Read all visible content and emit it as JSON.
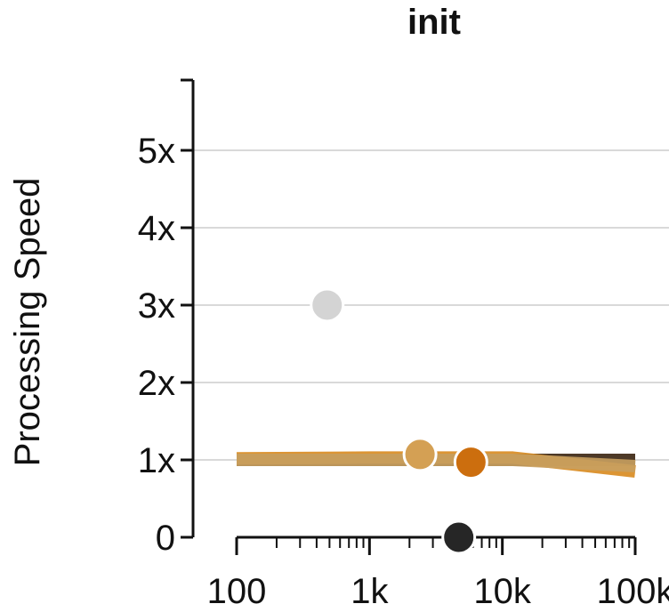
{
  "chart_data": {
    "type": "line",
    "title": "init",
    "xlabel": "",
    "ylabel": "Processing Speed",
    "x_scale": "log",
    "xlim": [
      100,
      100000
    ],
    "ylim": [
      0,
      5.8
    ],
    "grid": true,
    "x_ticks": [
      {
        "value": 100,
        "label": "100"
      },
      {
        "value": 1000,
        "label": "1k"
      },
      {
        "value": 10000,
        "label": "10k"
      },
      {
        "value": 100000,
        "label": "100k"
      }
    ],
    "y_ticks": [
      {
        "value": 0,
        "label": "0"
      },
      {
        "value": 1,
        "label": "1x"
      },
      {
        "value": 2,
        "label": "2x"
      },
      {
        "value": 3,
        "label": "3x"
      },
      {
        "value": 4,
        "label": "4x"
      },
      {
        "value": 5,
        "label": "5x"
      }
    ],
    "series": [
      {
        "color": "#3a2410",
        "x": [
          100,
          1000,
          12000,
          100000
        ],
        "y": [
          1.0,
          1.0,
          1.0,
          1.0
        ]
      },
      {
        "color": "#d88a1e",
        "x": [
          100,
          1000,
          12000,
          100000
        ],
        "y": [
          1.02,
          1.03,
          1.03,
          0.85
        ]
      },
      {
        "color": "#c8a060",
        "x": [
          100,
          1000,
          12000,
          100000
        ],
        "y": [
          1.0,
          1.0,
          1.0,
          0.92
        ]
      }
    ],
    "points": [
      {
        "x": 480,
        "y": 3.0,
        "color": "#d4d4d4"
      },
      {
        "x": 2400,
        "y": 1.07,
        "color": "#d4a054"
      },
      {
        "x": 5800,
        "y": 0.97,
        "color": "#cc6e0e"
      },
      {
        "x": 4700,
        "y": 0.0,
        "color": "#262626"
      }
    ]
  }
}
